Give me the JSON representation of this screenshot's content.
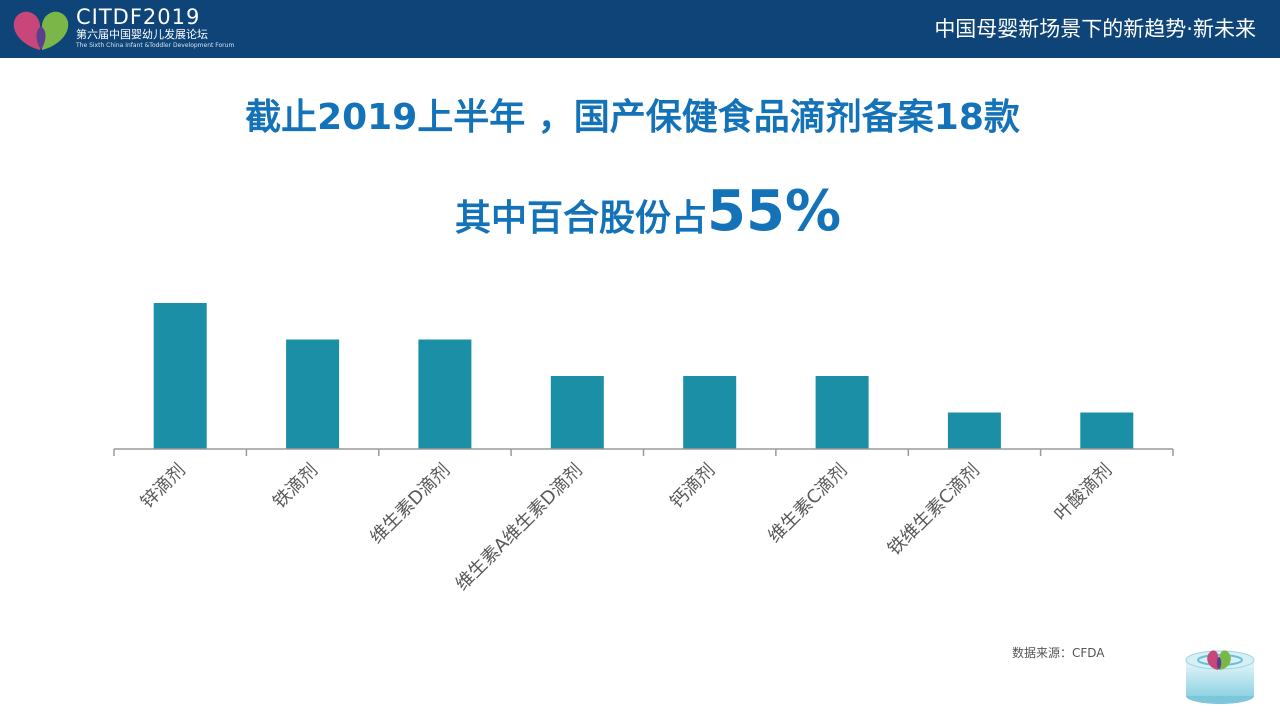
{
  "header": {
    "logo_name": "CITDF2019",
    "logo_cn": "第六届中国婴幼儿发展论坛",
    "logo_en": "The Sixth China Infant &Toddler Development Forum",
    "tagline": "中国母婴新场景下的新趋势·新未来"
  },
  "headline": {
    "title": "截止2019上半年 ，国产保健食品滴剂备案18款",
    "subtitle_lead": "其中百合股份占",
    "subtitle_value": "55%"
  },
  "chart_data": {
    "type": "bar",
    "categories": [
      "锌滴剂",
      "铁滴剂",
      "维生素D滴剂",
      "维生素A维生素D滴剂",
      "钙滴剂",
      "维生素C滴剂",
      "铁维生素C滴剂",
      "叶酸滴剂"
    ],
    "values": [
      4,
      3,
      3,
      2,
      2,
      2,
      1,
      1
    ],
    "ylim": [
      0,
      4
    ],
    "title": "",
    "xlabel": "",
    "ylabel": "",
    "bar_color": "#1a8fa6",
    "axis_color": "#9a9a9a",
    "label_color": "#595959",
    "grid": false,
    "legend": "none"
  },
  "footer": {
    "source": "数据来源：CFDA"
  },
  "colors": {
    "header_bg": "#0e4477",
    "title": "#1473b8"
  }
}
